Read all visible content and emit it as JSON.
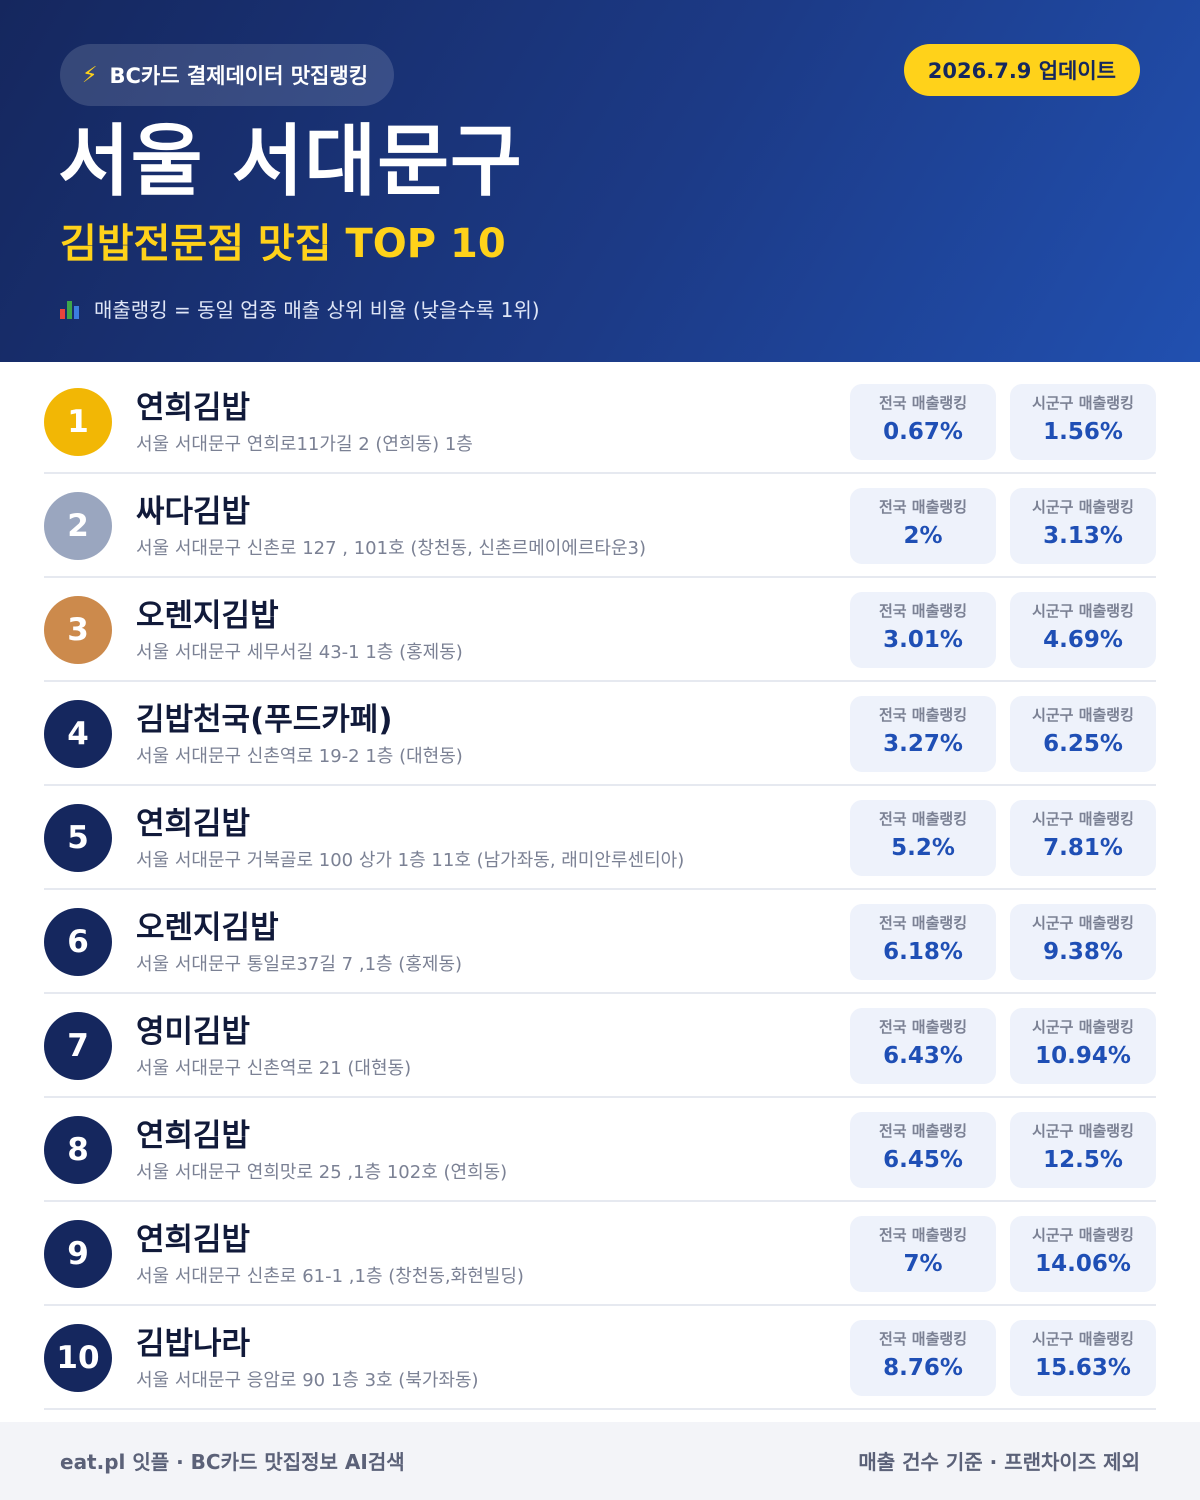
{
  "header": {
    "source_label": "BC카드 결제데이터 맛집랭킹",
    "update_label": "2026.7.9 업데이트",
    "region": "서울 서대문구",
    "subtitle": "김밥전문점 맛집 TOP 10",
    "legend": "매출랭킹 = 동일 업종 매출 상위 비율 (낮을수록 1위)"
  },
  "labels": {
    "national": "전국 매출랭킹",
    "local": "시군구 매출랭킹"
  },
  "colors": {
    "gold": "#f2b705",
    "silver": "#9aa6bf",
    "bronze": "#cc8a4c",
    "navy": "#15275e",
    "accent_yellow": "#ffd21a",
    "value_blue": "#1f4fb5"
  },
  "restaurants": [
    {
      "rank": "1",
      "name": "연희김밥",
      "address": "서울 서대문구 연희로11가길 2 (연희동) 1층",
      "national": "0.67%",
      "local": "1.56%"
    },
    {
      "rank": "2",
      "name": "싸다김밥",
      "address": "서울 서대문구 신촌로 127 , 101호 (창천동, 신촌르메이에르타운3)",
      "national": "2%",
      "local": "3.13%"
    },
    {
      "rank": "3",
      "name": "오렌지김밥",
      "address": "서울 서대문구 세무서길 43-1 1층 (홍제동)",
      "national": "3.01%",
      "local": "4.69%"
    },
    {
      "rank": "4",
      "name": "김밥천국(푸드카페)",
      "address": "서울 서대문구 신촌역로 19-2 1층 (대현동)",
      "national": "3.27%",
      "local": "6.25%"
    },
    {
      "rank": "5",
      "name": "연희김밥",
      "address": "서울 서대문구 거북골로 100 상가 1층 11호 (남가좌동, 래미안루센티아)",
      "national": "5.2%",
      "local": "7.81%"
    },
    {
      "rank": "6",
      "name": "오렌지김밥",
      "address": "서울 서대문구 통일로37길 7 ,1층 (홍제동)",
      "national": "6.18%",
      "local": "9.38%"
    },
    {
      "rank": "7",
      "name": "영미김밥",
      "address": "서울 서대문구 신촌역로 21 (대현동)",
      "national": "6.43%",
      "local": "10.94%"
    },
    {
      "rank": "8",
      "name": "연희김밥",
      "address": "서울 서대문구 연희맛로 25 ,1층 102호 (연희동)",
      "national": "6.45%",
      "local": "12.5%"
    },
    {
      "rank": "9",
      "name": "연희김밥",
      "address": "서울 서대문구 신촌로 61-1 ,1층 (창천동,화현빌딩)",
      "national": "7%",
      "local": "14.06%"
    },
    {
      "rank": "10",
      "name": "김밥나라",
      "address": "서울 서대문구 응암로 90 1층 3호 (북가좌동)",
      "national": "8.76%",
      "local": "15.63%"
    }
  ],
  "footer": {
    "left": "eat.pl 잇플 · BC카드 맛집정보 AI검색",
    "right": "매출 건수 기준 · 프랜차이즈 제외"
  }
}
